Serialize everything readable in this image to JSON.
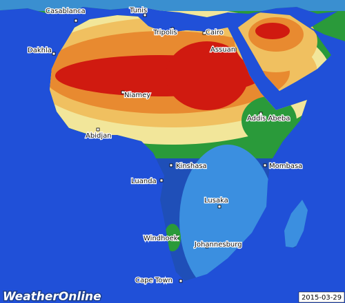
{
  "logo": "WeatherOnline",
  "date": "2015-03-29",
  "cities": [
    "Casablanca",
    "Tunis",
    "Tripolis",
    "Cairo",
    "Assuan",
    "Dakhla",
    "Niamey",
    "Addis Abeba",
    "Abidjan",
    "Kinshasa",
    "Mombasa",
    "Luanda",
    "Lusaka",
    "Windhoek",
    "Johannesburg",
    "Cape Town"
  ]
}
